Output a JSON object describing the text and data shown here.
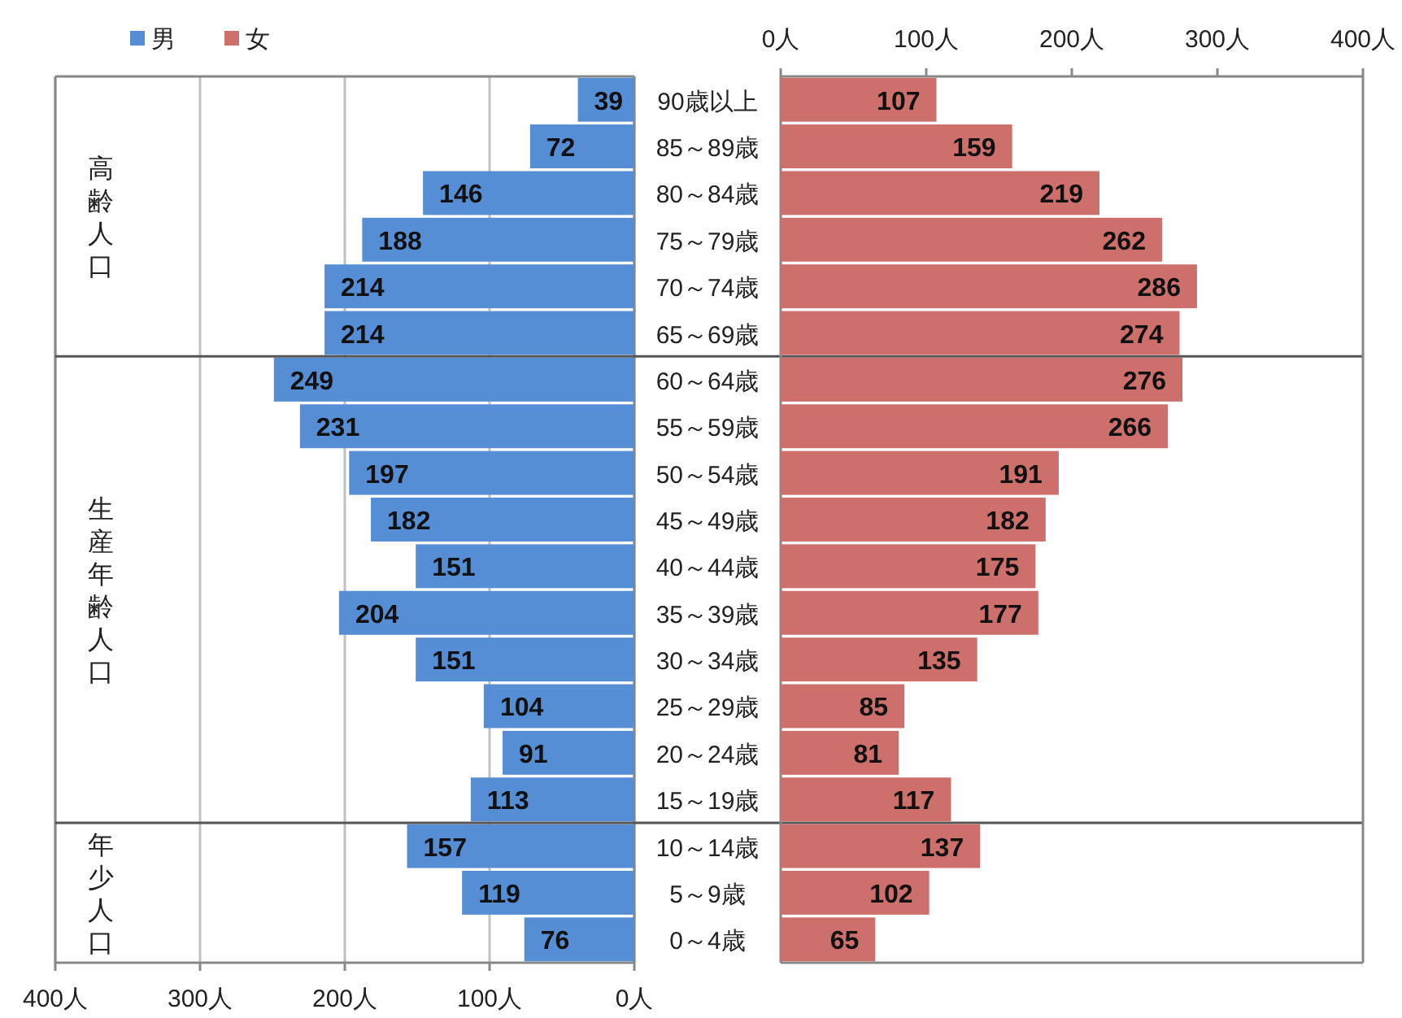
{
  "chart_data": [
    {
      "type": "bar",
      "orientation": "horizontal",
      "categories": [
        "90歳以上",
        "85～89歳",
        "80～84歳",
        "75～79歳",
        "70～74歳",
        "65～69歳",
        "60～64歳",
        "55～59歳",
        "50～54歳",
        "45～49歳",
        "40～44歳",
        "35～39歳",
        "30～34歳",
        "25～29歳",
        "20～24歳",
        "15～19歳",
        "10～14歳",
        "5～9歳",
        "0～4歳"
      ],
      "series": [
        {
          "name": "男",
          "color": "#558ed5",
          "values": [
            39,
            72,
            146,
            188,
            214,
            214,
            249,
            231,
            197,
            182,
            151,
            204,
            151,
            104,
            91,
            113,
            157,
            119,
            76
          ]
        }
      ],
      "xlim": [
        400,
        0
      ],
      "xticks": [
        {
          "value": 400,
          "label": "400人"
        },
        {
          "value": 300,
          "label": "300人"
        },
        {
          "value": 200,
          "label": "200人"
        },
        {
          "value": 100,
          "label": "100人"
        },
        {
          "value": 0,
          "label": "0人"
        }
      ],
      "grid": "x",
      "legend": "top left",
      "data_labels": true,
      "annotations": [
        "高齢人口",
        "生産年齢人口",
        "年少人口"
      ],
      "ref_lines": [
        {
          "axis": "y",
          "value": "65～69歳"
        },
        {
          "axis": "y",
          "value": "15～19歳"
        }
      ]
    },
    {
      "type": "bar",
      "orientation": "horizontal",
      "categories": [
        null,
        null,
        null,
        null,
        null,
        null,
        null,
        null,
        null,
        null,
        null,
        null,
        null,
        null,
        null,
        null,
        null,
        null,
        null
      ],
      "series": [
        {
          "name": "女",
          "color": "#cd706c",
          "values": [
            107,
            159,
            219,
            262,
            286,
            274,
            276,
            266,
            191,
            182,
            175,
            177,
            135,
            85,
            81,
            117,
            137,
            102,
            65
          ]
        }
      ],
      "xlim": [
        0,
        400
      ],
      "xticks": [
        {
          "value": 0,
          "label": "0人"
        },
        {
          "value": 100,
          "label": "100人"
        },
        {
          "value": 200,
          "label": "200人"
        },
        {
          "value": 300,
          "label": "300人"
        },
        {
          "value": 400,
          "label": "400人"
        }
      ],
      "tick_labels": "x",
      "data_labels": true
    }
  ]
}
